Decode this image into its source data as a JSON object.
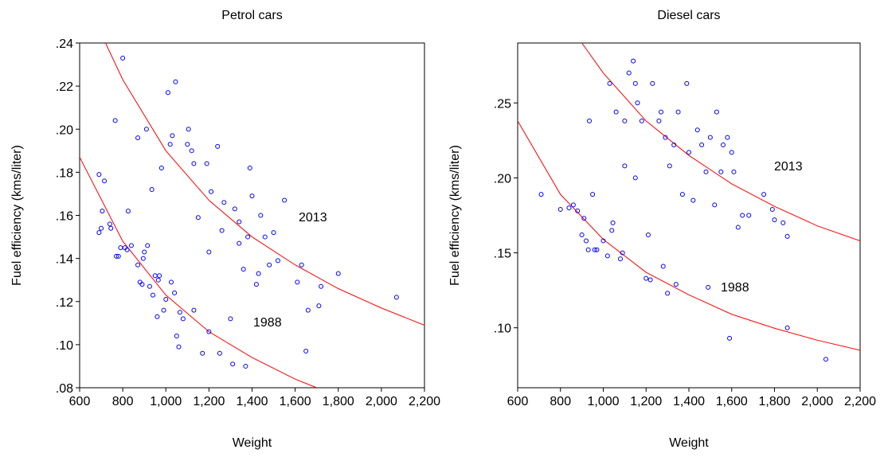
{
  "chart_data": [
    {
      "type": "scatter",
      "title": "Petrol cars",
      "xlabel": "Weight",
      "ylabel": "Fuel efficiency (kms/liter)",
      "xlim": [
        600,
        2200
      ],
      "ylim": [
        0.08,
        0.24
      ],
      "xticks": [
        600,
        800,
        {
          "value": 1000,
          "label": "1,000"
        },
        {
          "value": 1200,
          "label": "1,200"
        },
        {
          "value": 1400,
          "label": "1,400"
        },
        {
          "value": 1600,
          "label": "1,600"
        },
        {
          "value": 1800,
          "label": "1,800"
        },
        {
          "value": 2000,
          "label": "2,000"
        },
        {
          "value": 2200,
          "label": "2,200"
        }
      ],
      "yticks": [
        {
          "value": 0.08,
          "label": ".08"
        },
        {
          "value": 0.1,
          "label": ".10"
        },
        {
          "value": 0.12,
          "label": ".12"
        },
        {
          "value": 0.14,
          "label": ".14"
        },
        {
          "value": 0.16,
          "label": ".16"
        },
        {
          "value": 0.18,
          "label": ".18"
        },
        {
          "value": 0.2,
          "label": ".20"
        },
        {
          "value": 0.22,
          "label": ".22"
        },
        {
          "value": 0.24,
          "label": ".24"
        }
      ],
      "points": {
        "color": "#0000ff",
        "x": [
          690,
          690,
          700,
          705,
          715,
          740,
          745,
          770,
          780,
          790,
          800,
          810,
          820,
          825,
          840,
          765,
          870,
          870,
          880,
          890,
          895,
          900,
          910,
          915,
          925,
          935,
          940,
          950,
          960,
          965,
          970,
          980,
          990,
          1000,
          1010,
          1020,
          1025,
          1030,
          1040,
          1045,
          1050,
          1060,
          1065,
          1080,
          1100,
          1105,
          1120,
          1130,
          1150,
          1170,
          1190,
          1200,
          1210,
          1240,
          1250,
          1260,
          1270,
          1300,
          1310,
          1320,
          1340,
          1360,
          1370,
          1380,
          1390,
          1400,
          1420,
          1430,
          1440,
          1460,
          1480,
          1500,
          1520,
          1550,
          1610,
          1630,
          1650,
          1660,
          1710,
          1720,
          1800,
          2070,
          1200,
          1130,
          1340
        ],
        "y": [
          0.152,
          0.179,
          0.154,
          0.162,
          0.176,
          0.156,
          0.154,
          0.141,
          0.141,
          0.145,
          0.233,
          0.145,
          0.144,
          0.162,
          0.146,
          0.204,
          0.196,
          0.137,
          0.129,
          0.128,
          0.14,
          0.143,
          0.2,
          0.146,
          0.127,
          0.172,
          0.123,
          0.132,
          0.113,
          0.13,
          0.132,
          0.182,
          0.116,
          0.121,
          0.217,
          0.193,
          0.129,
          0.197,
          0.124,
          0.222,
          0.104,
          0.099,
          0.115,
          0.112,
          0.193,
          0.2,
          0.19,
          0.116,
          0.159,
          0.096,
          0.184,
          0.106,
          0.171,
          0.192,
          0.096,
          0.153,
          0.166,
          0.112,
          0.091,
          0.163,
          0.147,
          0.135,
          0.09,
          0.15,
          0.182,
          0.169,
          0.128,
          0.133,
          0.16,
          0.15,
          0.137,
          0.152,
          0.139,
          0.167,
          0.129,
          0.137,
          0.097,
          0.116,
          0.118,
          0.127,
          0.133,
          0.122,
          0.143,
          0.184,
          0.157
        ]
      },
      "curves": [
        {
          "color": "#ff0000",
          "x": [
            720,
            800,
            1000,
            1200,
            1400,
            1600,
            1800,
            2000,
            2200
          ],
          "y": [
            0.24,
            0.223,
            0.19,
            0.167,
            0.15,
            0.137,
            0.126,
            0.117,
            0.109
          ]
        },
        {
          "color": "#ff0000",
          "x": [
            600,
            800,
            1000,
            1200,
            1400,
            1600,
            1700
          ],
          "y": [
            0.187,
            0.148,
            0.123,
            0.106,
            0.094,
            0.084,
            0.08
          ]
        }
      ],
      "annotations": [
        "2013",
        "1988"
      ]
    },
    {
      "type": "scatter",
      "title": "Diesel cars",
      "xlabel": "Weight",
      "ylabel": "Fuel efficiency (kms/liter)",
      "xlim": [
        600,
        2200
      ],
      "ylim": [
        0.06,
        0.29
      ],
      "xticks": [
        600,
        800,
        {
          "value": 1000,
          "label": "1,000"
        },
        {
          "value": 1200,
          "label": "1,200"
        },
        {
          "value": 1400,
          "label": "1,400"
        },
        {
          "value": 1600,
          "label": "1,600"
        },
        {
          "value": 1800,
          "label": "1,800"
        },
        {
          "value": 2000,
          "label": "2,000"
        },
        {
          "value": 2200,
          "label": "2,200"
        }
      ],
      "yticks": [
        {
          "value": 0.1,
          "label": ".10"
        },
        {
          "value": 0.15,
          "label": ".15"
        },
        {
          "value": 0.2,
          "label": ".20"
        },
        {
          "value": 0.25,
          "label": ".25"
        }
      ],
      "points": {
        "color": "#0000ff",
        "x": [
          710,
          800,
          840,
          860,
          880,
          900,
          910,
          920,
          930,
          935,
          950,
          960,
          970,
          1000,
          1020,
          1030,
          1040,
          1045,
          1060,
          1080,
          1090,
          1100,
          1120,
          1140,
          1150,
          1160,
          1180,
          1200,
          1210,
          1220,
          1230,
          1260,
          1270,
          1280,
          1290,
          1300,
          1310,
          1330,
          1340,
          1350,
          1370,
          1390,
          1400,
          1420,
          1440,
          1460,
          1480,
          1490,
          1500,
          1520,
          1530,
          1550,
          1560,
          1580,
          1590,
          1600,
          1610,
          1630,
          1650,
          1680,
          1750,
          1790,
          1800,
          1840,
          1860,
          1860,
          2040,
          1100,
          1150
        ],
        "y": [
          0.189,
          0.179,
          0.18,
          0.182,
          0.178,
          0.162,
          0.173,
          0.158,
          0.152,
          0.238,
          0.189,
          0.152,
          0.152,
          0.158,
          0.148,
          0.263,
          0.165,
          0.17,
          0.244,
          0.146,
          0.15,
          0.238,
          0.27,
          0.278,
          0.263,
          0.25,
          0.238,
          0.133,
          0.162,
          0.132,
          0.263,
          0.238,
          0.244,
          0.141,
          0.227,
          0.123,
          0.208,
          0.222,
          0.129,
          0.244,
          0.189,
          0.263,
          0.217,
          0.185,
          0.232,
          0.222,
          0.204,
          0.127,
          0.227,
          0.182,
          0.244,
          0.204,
          0.222,
          0.227,
          0.093,
          0.217,
          0.204,
          0.167,
          0.175,
          0.175,
          0.189,
          0.179,
          0.172,
          0.17,
          0.1,
          0.161,
          0.079,
          0.208,
          0.2
        ]
      },
      "curves": [
        {
          "color": "#ff0000",
          "x": [
            900,
            1000,
            1200,
            1400,
            1600,
            1800,
            2000,
            2200
          ],
          "y": [
            0.29,
            0.27,
            0.238,
            0.215,
            0.196,
            0.181,
            0.168,
            0.158
          ]
        },
        {
          "color": "#ff0000",
          "x": [
            600,
            800,
            1000,
            1200,
            1400,
            1600,
            1800,
            2000,
            2200
          ],
          "y": [
            0.238,
            0.189,
            0.159,
            0.137,
            0.122,
            0.109,
            0.0997,
            0.0917,
            0.085
          ]
        }
      ],
      "annotations": [
        "2013",
        "1988"
      ]
    }
  ]
}
